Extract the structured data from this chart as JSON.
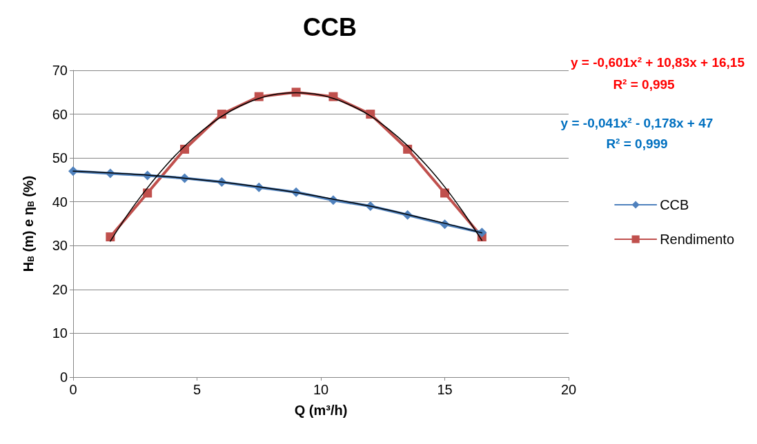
{
  "chart_data": {
    "type": "line",
    "title": "CCB",
    "xlabel": "Q (m³/h)",
    "ylabel": "H$_{B}$ (m) e η$_{B}$ (%)",
    "xlim": [
      0,
      20
    ],
    "xticks": [
      0,
      5,
      10,
      15,
      20
    ],
    "ylim": [
      0,
      70
    ],
    "yticks": [
      0,
      10,
      20,
      30,
      40,
      50,
      60,
      70
    ],
    "grid": "y",
    "legend": "right",
    "annotations": [
      "y = -0,601x² + 10,83x + 16,15",
      "R² = 0,995",
      "y = -0,041x² - 0,178x + 47",
      "R² = 0,999"
    ],
    "series": [
      {
        "name": "CCB",
        "color": "#4f81bd",
        "marker": "diamond",
        "x": [
          0,
          1.5,
          3,
          4.5,
          6,
          7.5,
          9,
          10.5,
          12,
          13.5,
          15,
          16.5
        ],
        "values": [
          47,
          46.5,
          46,
          45.4,
          44.5,
          43.3,
          42.2,
          40.4,
          39,
          37,
          34.9,
          33
        ]
      },
      {
        "name": "Rendimento",
        "color": "#c0504d",
        "marker": "square",
        "x": [
          1.5,
          3,
          4.5,
          6,
          7.5,
          9,
          10.5,
          12,
          13.5,
          15,
          16.5
        ],
        "values": [
          32,
          42,
          52,
          60,
          64,
          65,
          64,
          60,
          52,
          42,
          32
        ]
      },
      {
        "color": "#000000",
        "marker": "none",
        "x": [
          1.5,
          2.25,
          3,
          3.75,
          4.5,
          5.25,
          6,
          6.75,
          7.5,
          8.25,
          9,
          9.75,
          10.5,
          11.25,
          12,
          12.75,
          13.5,
          14.25,
          15,
          15.75,
          16.5
        ],
        "values": [
          31.0,
          37.5,
          43.2,
          48.3,
          52.7,
          56.4,
          59.5,
          61.9,
          63.6,
          64.6,
          64.9,
          64.6,
          63.6,
          61.9,
          59.6,
          56.5,
          52.8,
          48.4,
          43.4,
          37.6,
          31.2
        ]
      },
      {
        "color": "#000000",
        "marker": "none",
        "x": [
          0,
          1.5,
          3,
          4.5,
          6,
          7.5,
          9,
          10.5,
          12,
          13.5,
          15,
          16.5
        ],
        "values": [
          47,
          46.6,
          46.1,
          45.4,
          44.5,
          43.4,
          42.1,
          40.6,
          39,
          37.1,
          35.1,
          32.9
        ]
      }
    ]
  }
}
